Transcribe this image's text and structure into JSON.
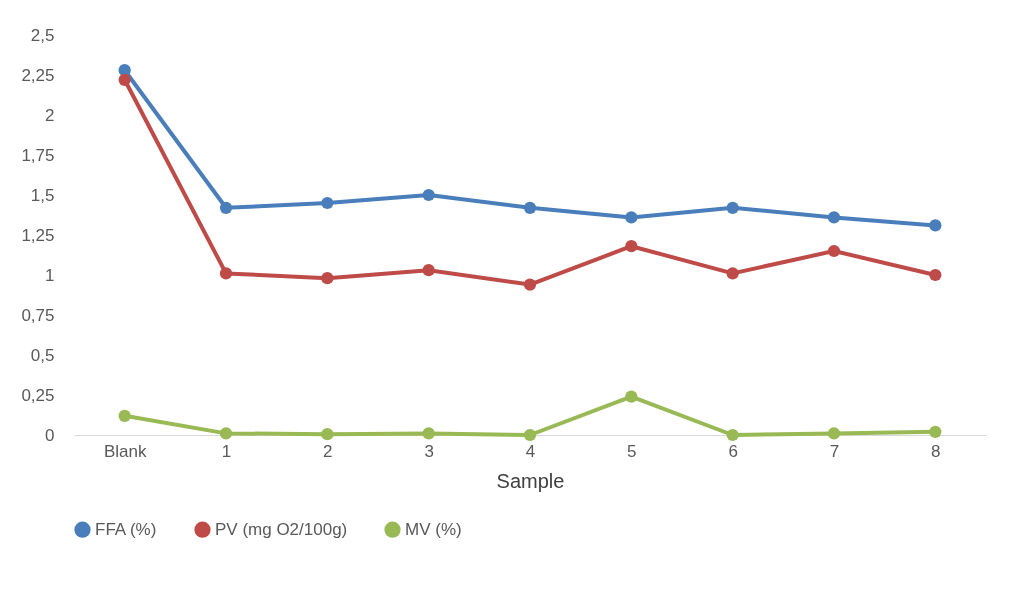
{
  "chart_data": {
    "type": "line",
    "xlabel": "Sample",
    "categories": [
      "Blank",
      "1",
      "2",
      "3",
      "4",
      "5",
      "6",
      "7",
      "8"
    ],
    "ylim": [
      0,
      2.5
    ],
    "yticks": [
      0,
      {
        "value": 0.25,
        "label": "0,25"
      },
      {
        "value": 0.5,
        "label": "0,5"
      },
      {
        "value": 0.75,
        "label": "0,75"
      },
      1,
      {
        "value": 1.25,
        "label": "1,25"
      },
      {
        "value": 1.5,
        "label": "1,5"
      },
      {
        "value": 1.75,
        "label": "1,75"
      },
      2,
      {
        "value": 2.25,
        "label": "2,25"
      },
      {
        "value": 2.5,
        "label": "2,5"
      }
    ],
    "series": [
      {
        "name": "FFA (%)",
        "color": "#4a7ebb",
        "values": [
          2.28,
          1.42,
          1.45,
          1.5,
          1.42,
          1.36,
          1.42,
          1.36,
          1.31
        ]
      },
      {
        "name": "PV (mg O2/100g)",
        "color": "#be4b48",
        "values": [
          2.22,
          1.01,
          0.98,
          1.03,
          0.94,
          1.18,
          1.01,
          1.15,
          1.0
        ]
      },
      {
        "name": "MV (%)",
        "color": "#98b954",
        "values": [
          0.12,
          0.01,
          0.005,
          0.01,
          0,
          0.24,
          0,
          0.01,
          0.02
        ]
      }
    ],
    "grid": false,
    "legend": "bottom",
    "marker": "circle",
    "line_style": "solid"
  }
}
